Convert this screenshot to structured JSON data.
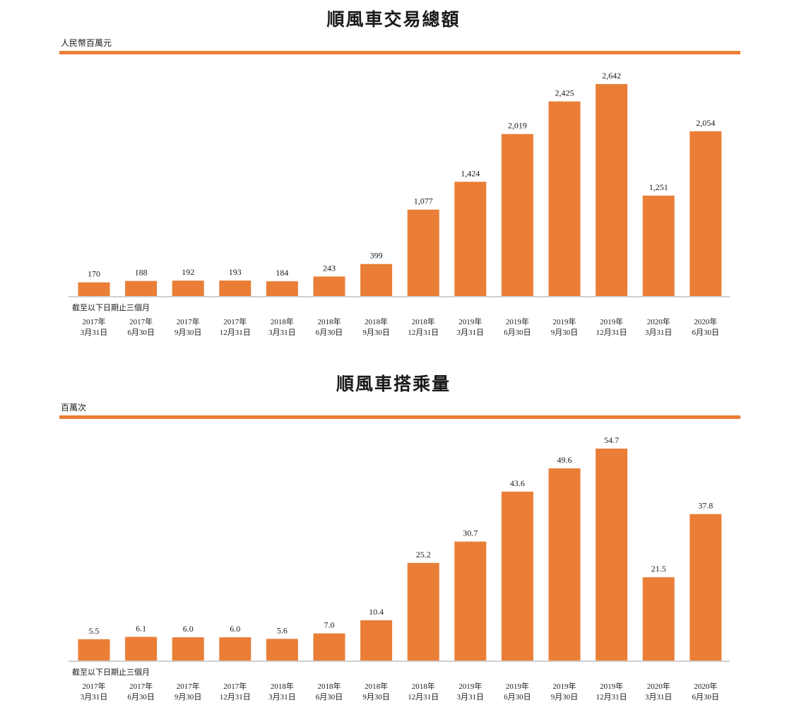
{
  "chart_data": [
    {
      "type": "bar",
      "title": "順風車交易總額",
      "unit_label": "人民幣百萬元",
      "note": "截至以下日期止三個月",
      "categories": [
        [
          "2017年",
          "3月31日"
        ],
        [
          "2017年",
          "6月30日"
        ],
        [
          "2017年",
          "9月30日"
        ],
        [
          "2017年",
          "12月31日"
        ],
        [
          "2018年",
          "3月31日"
        ],
        [
          "2018年",
          "6月30日"
        ],
        [
          "2018年",
          "9月30日"
        ],
        [
          "2018年",
          "12月31日"
        ],
        [
          "2019年",
          "3月31日"
        ],
        [
          "2019年",
          "6月30日"
        ],
        [
          "2019年",
          "9月30日"
        ],
        [
          "2019年",
          "12月31日"
        ],
        [
          "2020年",
          "3月31日"
        ],
        [
          "2020年",
          "6月30日"
        ]
      ],
      "values": [
        170,
        188,
        192,
        193,
        184,
        243,
        399,
        1077,
        1424,
        2019,
        2425,
        2642,
        1251,
        2054
      ],
      "value_labels": [
        "170",
        "188",
        "192",
        "193",
        "184",
        "243",
        "399",
        "1,077",
        "1,424",
        "2,019",
        "2,425",
        "2,642",
        "1,251",
        "2,054"
      ],
      "ylim": [
        0,
        2642
      ],
      "grid": false,
      "bar_color": "#ea7e37"
    },
    {
      "type": "bar",
      "title": "順風車搭乘量",
      "unit_label": "百萬次",
      "note": "截至以下日期止三個月",
      "categories": [
        [
          "2017年",
          "3月31日"
        ],
        [
          "2017年",
          "6月30日"
        ],
        [
          "2017年",
          "9月30日"
        ],
        [
          "2017年",
          "12月31日"
        ],
        [
          "2018年",
          "3月31日"
        ],
        [
          "2018年",
          "6月30日"
        ],
        [
          "2018年",
          "9月30日"
        ],
        [
          "2018年",
          "12月31日"
        ],
        [
          "2019年",
          "3月31日"
        ],
        [
          "2019年",
          "6月30日"
        ],
        [
          "2019年",
          "9月30日"
        ],
        [
          "2019年",
          "12月31日"
        ],
        [
          "2020年",
          "3月31日"
        ],
        [
          "2020年",
          "6月30日"
        ]
      ],
      "values": [
        5.5,
        6.1,
        6.0,
        6.0,
        5.6,
        7.0,
        10.4,
        25.2,
        30.7,
        43.6,
        49.6,
        54.7,
        21.5,
        37.8
      ],
      "value_labels": [
        "5.5",
        "6.1",
        "6.0",
        "6.0",
        "5.6",
        "7.0",
        "10.4",
        "25.2",
        "30.7",
        "43.6",
        "49.6",
        "54.7",
        "21.5",
        "37.8"
      ],
      "ylim": [
        0,
        54.7
      ],
      "grid": false,
      "bar_color": "#ea7e37"
    }
  ]
}
